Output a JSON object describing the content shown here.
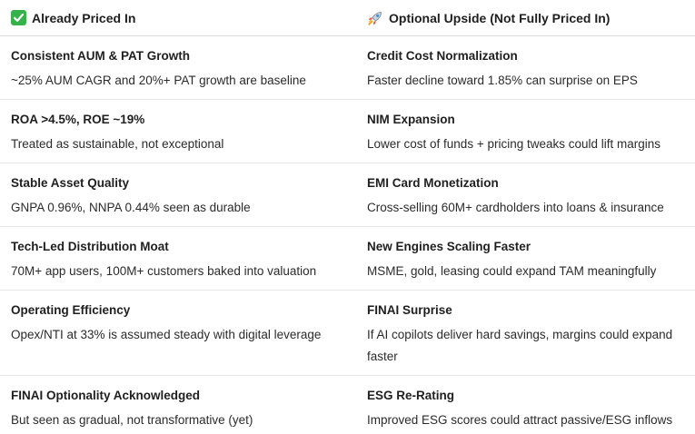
{
  "headers": {
    "left": "Already Priced In",
    "right": "Optional Upside (Not Fully Priced In)"
  },
  "icons": {
    "left": "check-mark-icon",
    "right": "rocket-icon"
  },
  "colors": {
    "check_bg": "#35b24a"
  },
  "rows": [
    {
      "left": {
        "title": "Consistent AUM & PAT Growth",
        "desc": "~25% AUM CAGR and 20%+ PAT growth are baseline"
      },
      "right": {
        "title": "Credit Cost Normalization",
        "desc": "Faster decline toward 1.85% can surprise on EPS"
      }
    },
    {
      "left": {
        "title": "ROA >4.5%, ROE ~19%",
        "desc": "Treated as sustainable, not exceptional"
      },
      "right": {
        "title": "NIM Expansion",
        "desc": "Lower cost of funds + pricing tweaks could lift margins"
      }
    },
    {
      "left": {
        "title": "Stable Asset Quality",
        "desc": "GNPA 0.96%, NNPA 0.44% seen as durable"
      },
      "right": {
        "title": "EMI Card Monetization",
        "desc": "Cross-selling 60M+ cardholders into loans & insurance"
      }
    },
    {
      "left": {
        "title": "Tech-Led Distribution Moat",
        "desc": "70M+ app users, 100M+ customers baked into valuation"
      },
      "right": {
        "title": "New Engines Scaling Faster",
        "desc": "MSME, gold, leasing could expand TAM meaningfully"
      }
    },
    {
      "left": {
        "title": "Operating Efficiency",
        "desc": "Opex/NTI at 33% is assumed steady with digital leverage"
      },
      "right": {
        "title": "FINAI Surprise",
        "desc": "If AI copilots deliver hard savings, margins could expand faster"
      }
    },
    {
      "left": {
        "title": "FINAI Optionality Acknowledged",
        "desc": "But seen as gradual, not transformative (yet)"
      },
      "right": {
        "title": "ESG Re-Rating",
        "desc": "Improved ESG scores could attract passive/ESG inflows"
      }
    }
  ]
}
